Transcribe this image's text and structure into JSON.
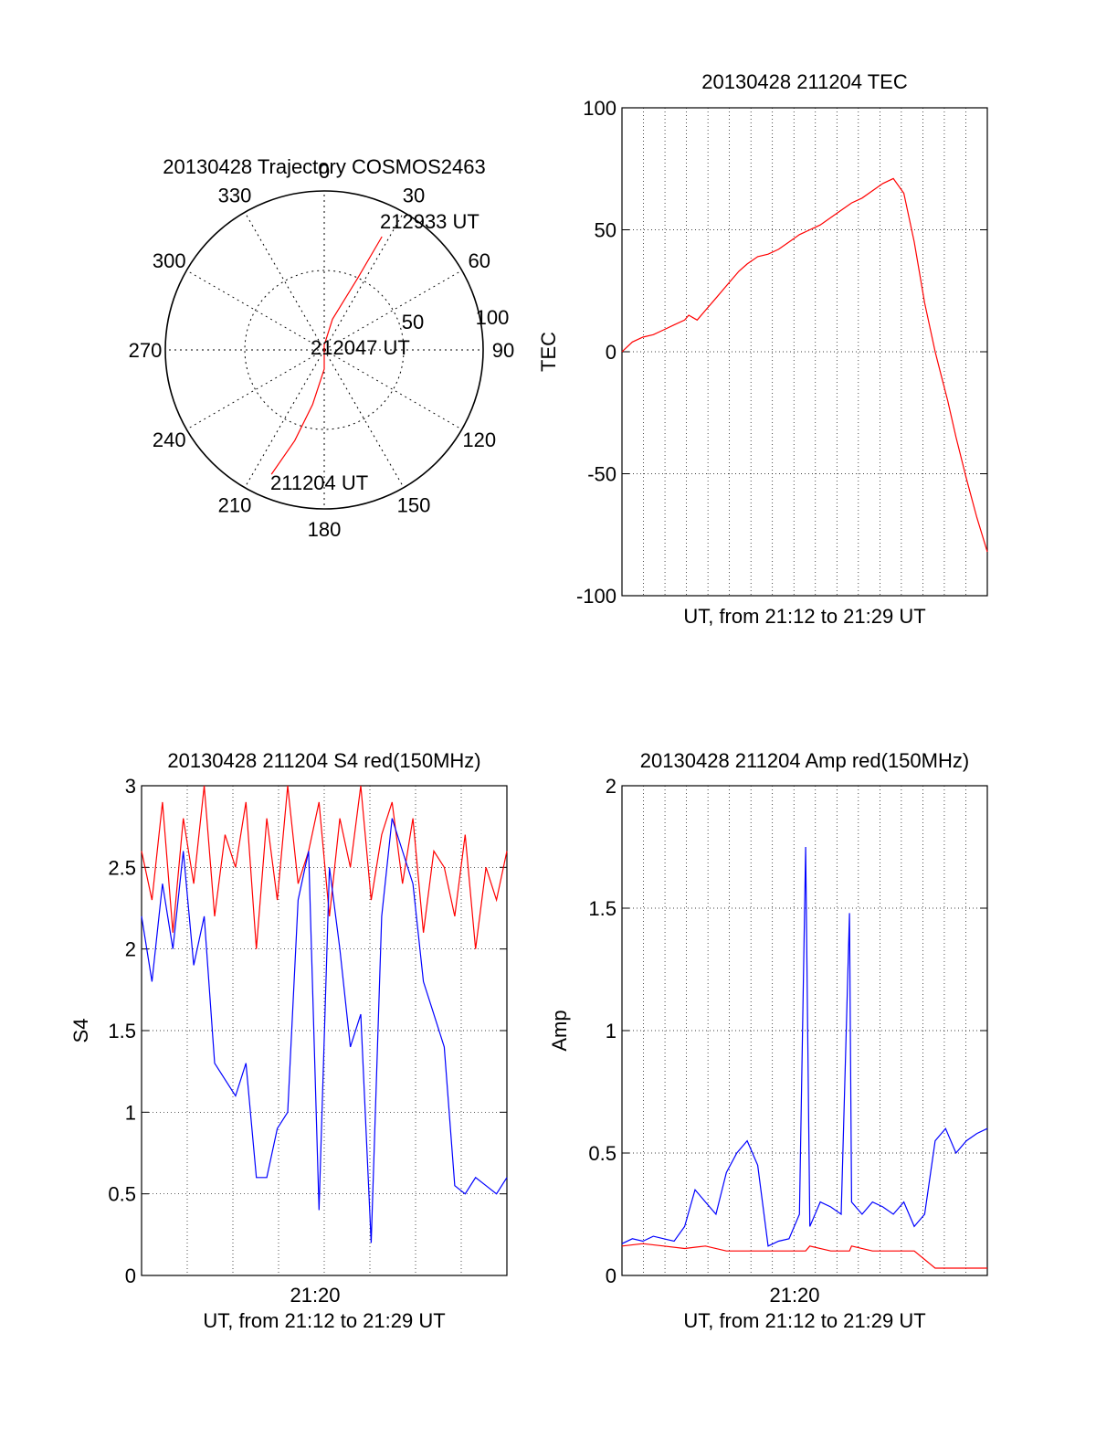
{
  "chart_data": [
    {
      "type": "polar",
      "title": "20130428 Trajectory COSMOS2463",
      "angle_labels": [
        "0",
        "30",
        "60",
        "90",
        "120",
        "150",
        "180",
        "210",
        "240",
        "270",
        "300",
        "330"
      ],
      "radial_labels": [
        "50",
        "100"
      ],
      "radial_range": [
        0,
        100
      ],
      "grid": true,
      "trajectory": {
        "color": "#ff0000",
        "points": [
          {
            "az": 203,
            "r": 85
          },
          {
            "az": 198,
            "r": 60
          },
          {
            "az": 192,
            "r": 35
          },
          {
            "az": 180,
            "r": 12
          },
          {
            "az": 0,
            "r": 3
          },
          {
            "az": 15,
            "r": 20
          },
          {
            "az": 25,
            "r": 50
          },
          {
            "az": 27,
            "r": 80
          }
        ]
      },
      "annotations": [
        "212933 UT",
        "212047 UT",
        "211204 UT"
      ]
    },
    {
      "type": "line",
      "title": "20130428 211204 TEC",
      "xlabel": "UT, from 21:12 to 21:29 UT",
      "ylabel": "TEC",
      "xlim": [
        0,
        17.5
      ],
      "ylim": [
        -100,
        100
      ],
      "yticks": [
        "-100",
        "-50",
        "0",
        "50",
        "100"
      ],
      "grid": true,
      "series": [
        {
          "color": "#ff0000",
          "x": [
            0,
            0.5,
            1.0,
            1.5,
            2.0,
            2.5,
            3.0,
            3.2,
            3.6,
            4.0,
            4.5,
            5.0,
            5.6,
            6.0,
            6.5,
            7.0,
            7.5,
            8.0,
            8.5,
            9.0,
            9.5,
            10.0,
            10.5,
            11.0,
            11.5,
            12.0,
            12.5,
            13.0,
            13.5,
            14.0,
            14.5,
            15.0,
            15.3,
            15.6,
            16.0,
            16.5,
            17.0,
            17.5
          ],
          "y": [
            0,
            4,
            6,
            7,
            9,
            11,
            13,
            15,
            13,
            17,
            22,
            27,
            33,
            36,
            39,
            40,
            42,
            45,
            48,
            50,
            52,
            55,
            58,
            61,
            63,
            66,
            69,
            71,
            65,
            45,
            20,
            0,
            -10,
            -20,
            -35,
            -52,
            -68,
            -82
          ]
        }
      ]
    },
    {
      "type": "line",
      "title": "20130428 211204 S4 red(150MHz)",
      "xlabel": "UT, from 21:12 to 21:29 UT",
      "ylabel": "S4",
      "xlim": [
        0,
        17.5
      ],
      "ylim": [
        0,
        3
      ],
      "xticks": [
        "21:20"
      ],
      "yticks": [
        "0",
        "0.5",
        "1",
        "1.5",
        "2",
        "2.5",
        "3"
      ],
      "grid": true,
      "series": [
        {
          "color": "#ff0000",
          "x": [
            0,
            0.5,
            1.0,
            1.5,
            2.0,
            2.5,
            3.0,
            3.5,
            4.0,
            4.5,
            5.0,
            5.5,
            6.0,
            6.5,
            7.0,
            7.5,
            8.0,
            8.5,
            9.0,
            9.5,
            10.0,
            10.5,
            11.0,
            11.5,
            12.0,
            12.5,
            13.0,
            13.5,
            14.0,
            14.5,
            15.0,
            15.5,
            16.0,
            16.5,
            17.0,
            17.5
          ],
          "y": [
            2.6,
            2.3,
            2.9,
            2.1,
            2.8,
            2.4,
            3.0,
            2.2,
            2.7,
            2.5,
            2.9,
            2.0,
            2.8,
            2.3,
            3.0,
            2.4,
            2.6,
            2.9,
            2.2,
            2.8,
            2.5,
            3.0,
            2.3,
            2.7,
            2.9,
            2.4,
            2.8,
            2.1,
            2.6,
            2.5,
            2.2,
            2.7,
            2.0,
            2.5,
            2.3,
            2.6
          ]
        },
        {
          "color": "#0000ff",
          "x": [
            0,
            0.5,
            1.0,
            1.5,
            2.0,
            2.5,
            3.0,
            3.5,
            4.0,
            4.5,
            5.0,
            5.5,
            6.0,
            6.5,
            7.0,
            7.5,
            8.0,
            8.5,
            9.0,
            9.5,
            10.0,
            10.5,
            11.0,
            11.5,
            12.0,
            12.5,
            13.0,
            13.5,
            14.0,
            14.5,
            15.0,
            15.5,
            16.0,
            16.5,
            17.0,
            17.5
          ],
          "y": [
            2.2,
            1.8,
            2.4,
            2.0,
            2.6,
            1.9,
            2.2,
            1.3,
            1.2,
            1.1,
            1.3,
            0.6,
            0.6,
            0.9,
            1.0,
            2.3,
            2.6,
            0.4,
            2.5,
            2.0,
            1.4,
            1.6,
            0.2,
            2.2,
            2.8,
            2.6,
            2.4,
            1.8,
            1.6,
            1.4,
            0.55,
            0.5,
            0.6,
            0.55,
            0.5,
            0.6
          ]
        }
      ]
    },
    {
      "type": "line",
      "title": "20130428 211204 Amp red(150MHz)",
      "xlabel": "UT, from 21:12 to 21:29 UT",
      "ylabel": "Amp",
      "xlim": [
        0,
        17.5
      ],
      "ylim": [
        0,
        2
      ],
      "xticks": [
        "21:20"
      ],
      "yticks": [
        "0",
        "0.5",
        "1",
        "1.5",
        "2"
      ],
      "grid": true,
      "series": [
        {
          "color": "#ff0000",
          "x": [
            0,
            1.0,
            2.0,
            3.0,
            4.0,
            5.0,
            6.0,
            7.0,
            8.0,
            8.8,
            9.0,
            10.0,
            10.9,
            11.0,
            12.0,
            13.0,
            14.0,
            15.0,
            16.0,
            17.0,
            17.5
          ],
          "y": [
            0.12,
            0.13,
            0.12,
            0.11,
            0.12,
            0.1,
            0.1,
            0.1,
            0.1,
            0.1,
            0.12,
            0.1,
            0.1,
            0.12,
            0.1,
            0.1,
            0.1,
            0.03,
            0.03,
            0.03,
            0.03
          ]
        },
        {
          "color": "#0000ff",
          "x": [
            0,
            0.5,
            1.0,
            1.5,
            2.0,
            2.5,
            3.0,
            3.5,
            4.0,
            4.5,
            5.0,
            5.5,
            6.0,
            6.5,
            7.0,
            7.5,
            8.0,
            8.5,
            8.8,
            9.0,
            9.5,
            10.0,
            10.5,
            10.9,
            11.0,
            11.5,
            12.0,
            12.5,
            13.0,
            13.5,
            14.0,
            14.5,
            15.0,
            15.5,
            16.0,
            16.5,
            17.0,
            17.5
          ],
          "y": [
            0.13,
            0.15,
            0.14,
            0.16,
            0.15,
            0.14,
            0.2,
            0.35,
            0.3,
            0.25,
            0.42,
            0.5,
            0.55,
            0.45,
            0.12,
            0.14,
            0.15,
            0.25,
            1.75,
            0.2,
            0.3,
            0.28,
            0.25,
            1.48,
            0.3,
            0.25,
            0.3,
            0.28,
            0.25,
            0.3,
            0.2,
            0.25,
            0.55,
            0.6,
            0.5,
            0.55,
            0.58,
            0.6
          ]
        }
      ]
    }
  ]
}
